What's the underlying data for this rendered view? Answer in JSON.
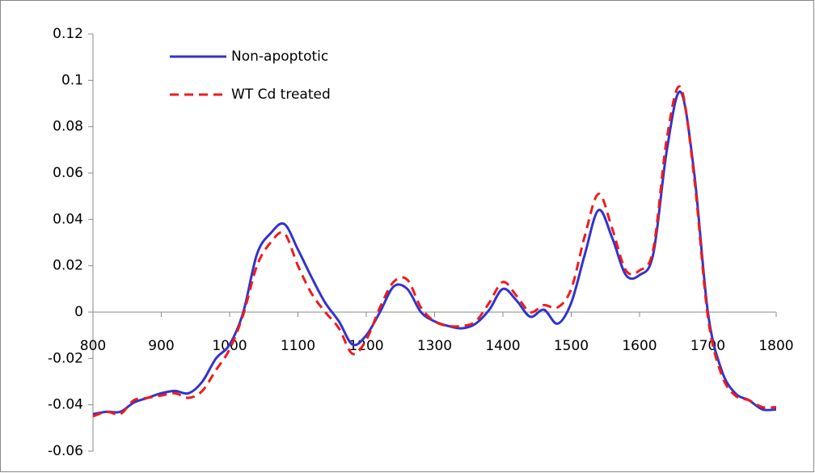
{
  "chart_data": {
    "type": "line",
    "x": [
      800,
      820,
      840,
      860,
      880,
      900,
      920,
      940,
      960,
      980,
      1000,
      1020,
      1040,
      1060,
      1080,
      1100,
      1120,
      1140,
      1160,
      1180,
      1200,
      1220,
      1240,
      1260,
      1280,
      1300,
      1320,
      1340,
      1360,
      1380,
      1400,
      1420,
      1440,
      1460,
      1480,
      1500,
      1520,
      1540,
      1560,
      1580,
      1600,
      1620,
      1640,
      1660,
      1680,
      1700,
      1720,
      1740,
      1760,
      1780,
      1800
    ],
    "series": [
      {
        "name": "Non-apoptotic",
        "color": "#3333cc",
        "dash": false,
        "values": [
          -0.044,
          -0.043,
          -0.043,
          -0.039,
          -0.037,
          -0.035,
          -0.034,
          -0.035,
          -0.03,
          -0.02,
          -0.014,
          0.0,
          0.025,
          0.034,
          0.038,
          0.027,
          0.015,
          0.004,
          -0.004,
          -0.014,
          -0.01,
          0.0,
          0.011,
          0.01,
          0.0,
          -0.004,
          -0.006,
          -0.007,
          -0.005,
          0.001,
          0.01,
          0.005,
          -0.002,
          0.001,
          -0.005,
          0.004,
          0.025,
          0.044,
          0.032,
          0.016,
          0.016,
          0.025,
          0.07,
          0.095,
          0.06,
          0.0,
          -0.025,
          -0.035,
          -0.038,
          -0.042,
          -0.042
        ]
      },
      {
        "name": "WT Cd treated",
        "color": "#ee1c1c",
        "dash": true,
        "values": [
          -0.045,
          -0.043,
          -0.044,
          -0.038,
          -0.037,
          -0.036,
          -0.035,
          -0.037,
          -0.034,
          -0.025,
          -0.016,
          -0.001,
          0.02,
          0.03,
          0.034,
          0.02,
          0.008,
          0.0,
          -0.007,
          -0.018,
          -0.012,
          0.002,
          0.013,
          0.014,
          0.002,
          -0.004,
          -0.006,
          -0.006,
          -0.004,
          0.004,
          0.013,
          0.007,
          0.0,
          0.003,
          0.002,
          0.01,
          0.033,
          0.051,
          0.036,
          0.018,
          0.018,
          0.027,
          0.075,
          0.097,
          0.058,
          -0.002,
          -0.027,
          -0.036,
          -0.038,
          -0.041,
          -0.041
        ]
      }
    ],
    "xlim": [
      800,
      1800
    ],
    "xticks": [
      800,
      900,
      1000,
      1100,
      1200,
      1300,
      1400,
      1500,
      1600,
      1700,
      1800
    ],
    "ylim": [
      -0.06,
      0.12
    ],
    "yticks": [
      -0.06,
      -0.04,
      -0.02,
      0,
      0.02,
      0.04,
      0.06,
      0.08,
      0.1,
      0.12
    ],
    "grid": false,
    "legend": "top-left"
  }
}
